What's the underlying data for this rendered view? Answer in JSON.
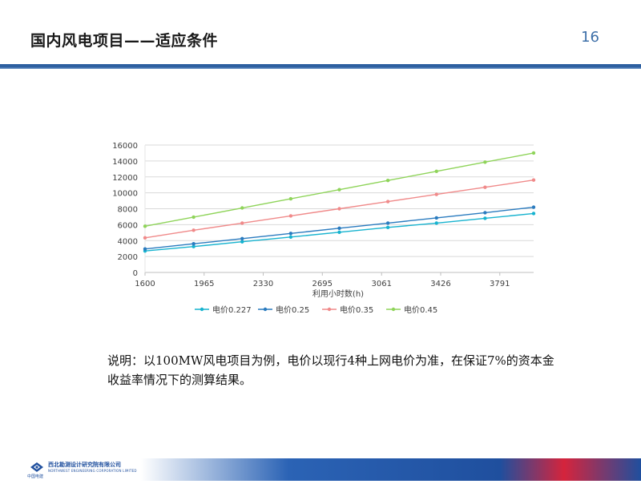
{
  "slide": {
    "title": "国内风电项目——适应条件",
    "page_number": "16"
  },
  "caption": {
    "text": "说明：以100MW风电项目为例，电价以现行4种上网电价为准，在保证7%的资本金收益率情况下的测算结果。"
  },
  "footer": {
    "org_name": "西北勘测设计研究院有限公司",
    "org_name_en": "NORTHWEST ENGINEERING CORPORATION LIMITED",
    "brand": "中国电建"
  },
  "colors": {
    "series": [
      "#17b3cf",
      "#2a7bbf",
      "#f08a8a",
      "#8fd45a"
    ],
    "grid": "#d9d9d9",
    "axis_text": "#404040",
    "title_rule": "#2d5fa0"
  },
  "chart_data": {
    "type": "line",
    "xlabel": "利用小时数(h)",
    "ylabel": "",
    "x": [
      1600,
      1900,
      2200,
      2500,
      2800,
      3100,
      3400,
      3700,
      4000
    ],
    "x_ticks": [
      "1600",
      "1965",
      "2330",
      "2695",
      "3061",
      "3426",
      "3791"
    ],
    "x_tick_values": [
      1600,
      1965,
      2330,
      2695,
      3061,
      3426,
      3791
    ],
    "xlim": [
      1600,
      4000
    ],
    "y_ticks": [
      "0",
      "2000",
      "4000",
      "6000",
      "8000",
      "10000",
      "12000",
      "14000",
      "16000"
    ],
    "ylim": [
      0,
      16000
    ],
    "grid": true,
    "legend_position": "bottom",
    "series": [
      {
        "name": "电价0.227",
        "values": [
          2700,
          3250,
          3850,
          4450,
          5050,
          5650,
          6200,
          6800,
          7400
        ]
      },
      {
        "name": "电价0.25",
        "values": [
          2950,
          3600,
          4250,
          4900,
          5550,
          6200,
          6850,
          7500,
          8200
        ]
      },
      {
        "name": "电价0.35",
        "values": [
          4350,
          5300,
          6200,
          7100,
          8000,
          8900,
          9800,
          10700,
          11600
        ]
      },
      {
        "name": "电价0.45",
        "values": [
          5800,
          6950,
          8100,
          9250,
          10400,
          11550,
          12700,
          13850,
          15000
        ]
      }
    ]
  }
}
